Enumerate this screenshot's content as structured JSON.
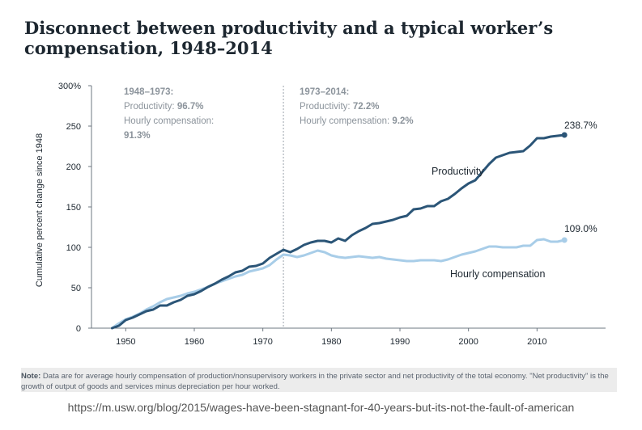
{
  "title": "Disconnect between productivity and a typical worker’s compensation, 1948–2014",
  "note": {
    "label": "Note:",
    "text": "Data are for average hourly compensation of production/nonsupervisory workers in the private sector and net productivity of the total economy. \"Net productivity\" is the growth of output of goods and services minus depreciation per hour worked."
  },
  "source_url": "https://m.usw.org/blog/2015/wages-have-been-stagnant-for-40-years-but-its-not-the-fault-of-american",
  "chart_data": {
    "type": "line",
    "ylabel": "Cumulative percent change since 1948",
    "ylim": [
      0,
      300
    ],
    "xlim": [
      1945,
      2020
    ],
    "y_ticks": [
      0,
      50,
      100,
      150,
      200,
      250,
      300
    ],
    "y_tick_labels": [
      "0",
      "50",
      "100",
      "150",
      "200",
      "250",
      "300%"
    ],
    "x_ticks": [
      1950,
      1960,
      1970,
      1980,
      1990,
      2000,
      2010
    ],
    "x_tick_labels": [
      "1950",
      "1960",
      "1970",
      "1980",
      "1990",
      "2000",
      "2010"
    ],
    "divider_year": 1973,
    "colors": {
      "productivity": "#2b5577",
      "compensation": "#a8cde8",
      "divider": "#9aa3ab",
      "axis": "#6d7780",
      "text": "#1d2730",
      "muted": "#8b939b"
    },
    "annotations": {
      "left": {
        "period": "1948–1973:",
        "prod_label": "Productivity: ",
        "prod_value": "96.7%",
        "comp_label": "Hourly compensation:",
        "comp_value": "91.3%"
      },
      "right": {
        "period": "1973–2014:",
        "prod_label": "Productivity: ",
        "prod_value": "72.2%",
        "comp_label": "Hourly compensation: ",
        "comp_value": "9.2%"
      }
    },
    "series": [
      {
        "name": "Productivity",
        "end_label": "238.7%",
        "x": [
          1948,
          1949,
          1950,
          1951,
          1952,
          1953,
          1954,
          1955,
          1956,
          1957,
          1958,
          1959,
          1960,
          1961,
          1962,
          1963,
          1964,
          1965,
          1966,
          1967,
          1968,
          1969,
          1970,
          1971,
          1972,
          1973,
          1974,
          1975,
          1976,
          1977,
          1978,
          1979,
          1980,
          1981,
          1982,
          1983,
          1984,
          1985,
          1986,
          1987,
          1988,
          1989,
          1990,
          1991,
          1992,
          1993,
          1994,
          1995,
          1996,
          1997,
          1998,
          1999,
          2000,
          2001,
          2002,
          2003,
          2004,
          2005,
          2006,
          2007,
          2008,
          2009,
          2010,
          2011,
          2012,
          2013,
          2014
        ],
        "values": [
          0,
          3,
          10,
          13,
          17,
          21,
          23,
          28,
          28,
          32,
          35,
          40,
          42,
          46,
          51,
          55,
          60,
          64,
          69,
          71,
          76,
          77,
          80,
          87,
          92,
          97,
          94,
          98,
          103,
          106,
          108,
          108,
          106,
          111,
          108,
          115,
          120,
          124,
          129,
          130,
          132,
          134,
          137,
          139,
          147,
          148,
          151,
          151,
          157,
          160,
          166,
          173,
          179,
          183,
          193,
          203,
          211,
          214,
          217,
          218,
          219,
          226,
          235,
          235,
          237,
          238,
          239
        ]
      },
      {
        "name": "Hourly compensation",
        "end_label": "109.0%",
        "x": [
          1948,
          1949,
          1950,
          1951,
          1952,
          1953,
          1954,
          1955,
          1956,
          1957,
          1958,
          1959,
          1960,
          1961,
          1962,
          1963,
          1964,
          1965,
          1966,
          1967,
          1968,
          1969,
          1970,
          1971,
          1972,
          1973,
          1974,
          1975,
          1976,
          1977,
          1978,
          1979,
          1980,
          1981,
          1982,
          1983,
          1984,
          1985,
          1986,
          1987,
          1988,
          1989,
          1990,
          1991,
          1992,
          1993,
          1994,
          1995,
          1996,
          1997,
          1998,
          1999,
          2000,
          2001,
          2002,
          2003,
          2004,
          2005,
          2006,
          2007,
          2008,
          2009,
          2010,
          2011,
          2012,
          2013,
          2014
        ],
        "values": [
          0,
          6,
          11,
          14,
          18,
          23,
          27,
          32,
          36,
          38,
          40,
          43,
          45,
          48,
          51,
          55,
          58,
          61,
          64,
          66,
          70,
          72,
          74,
          78,
          85,
          91,
          90,
          88,
          90,
          93,
          96,
          94,
          90,
          88,
          87,
          88,
          89,
          88,
          87,
          88,
          86,
          85,
          84,
          83,
          83,
          84,
          84,
          84,
          83,
          85,
          88,
          91,
          93,
          95,
          98,
          101,
          101,
          100,
          100,
          100,
          102,
          102,
          109,
          110,
          107,
          107,
          109
        ]
      }
    ]
  }
}
